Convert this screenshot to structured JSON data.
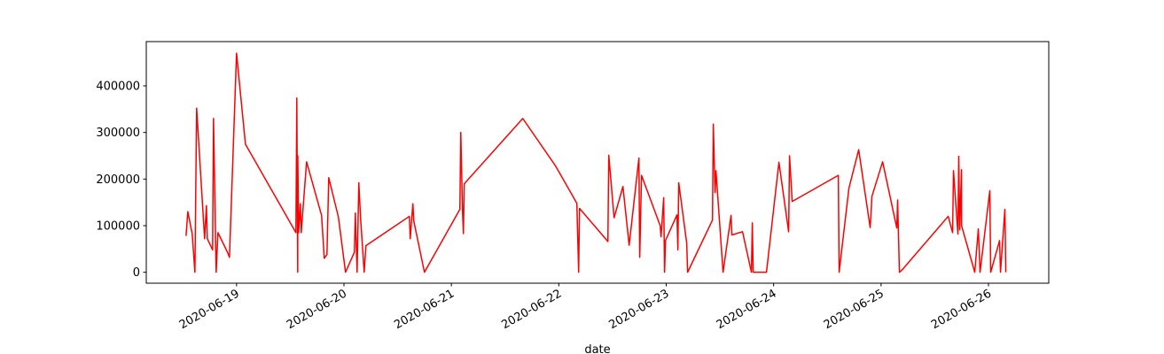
{
  "chart_data": {
    "type": "line",
    "x_label": "date",
    "x": [
      "2020-06-18T12:43",
      "2020-06-18T13:07",
      "2020-06-18T14:06",
      "2020-06-18T14:42",
      "2020-06-18T15:05",
      "2020-06-18T16:52",
      "2020-06-18T17:16",
      "2020-06-18T17:28",
      "2020-06-18T18:39",
      "2020-06-18T18:51",
      "2020-06-18T19:27",
      "2020-06-18T19:51",
      "2020-06-18T22:01",
      "2020-06-18T22:25",
      "2020-06-19T00:00",
      "2020-06-19T01:59",
      "2020-06-19T13:16",
      "2020-06-19T13:28",
      "2020-06-19T13:40",
      "2020-06-19T13:41",
      "2020-06-19T13:52",
      "2020-06-19T14:15",
      "2020-06-19T14:27",
      "2020-06-19T15:39",
      "2020-06-19T19:00",
      "2020-06-19T19:36",
      "2020-06-19T20:12",
      "2020-06-19T20:36",
      "2020-06-19T22:46",
      "2020-06-20T00:21",
      "2020-06-20T02:20",
      "2020-06-20T02:32",
      "2020-06-20T02:56",
      "2020-06-20T03:19",
      "2020-06-20T03:43",
      "2020-06-20T04:31",
      "2020-06-20T04:54",
      "2020-06-20T14:37",
      "2020-06-20T14:48",
      "2020-06-20T15:24",
      "2020-06-20T15:36",
      "2020-06-20T17:59",
      "2020-06-21T01:54",
      "2020-06-21T02:06",
      "2020-06-21T02:29",
      "2020-06-21T02:41",
      "2020-06-21T02:53",
      "2020-06-21T15:57",
      "2020-06-21T23:17",
      "2020-06-22T04:02",
      "2020-06-22T04:26",
      "2020-06-22T04:38",
      "2020-06-22T10:58",
      "2020-06-22T11:10",
      "2020-06-22T12:21",
      "2020-06-22T14:20",
      "2020-06-22T15:43",
      "2020-06-22T17:54",
      "2020-06-22T18:05",
      "2020-06-22T18:29",
      "2020-06-22T22:39",
      "2020-06-22T22:51",
      "2020-06-22T23:26",
      "2020-06-22T23:38",
      "2020-06-22T23:50",
      "2020-06-23T02:24",
      "2020-06-23T02:36",
      "2020-06-23T02:48",
      "2020-06-23T04:35",
      "2020-06-23T04:47",
      "2020-06-23T10:20",
      "2020-06-23T10:31",
      "2020-06-23T10:55",
      "2020-06-23T11:07",
      "2020-06-23T12:42",
      "2020-06-23T14:29",
      "2020-06-23T14:41",
      "2020-06-23T17:03",
      "2020-06-23T19:02",
      "2020-06-23T19:14",
      "2020-06-23T19:26",
      "2020-06-23T22:24",
      "2020-06-24T01:11",
      "2020-06-24T03:21",
      "2020-06-24T03:33",
      "2020-06-24T04:09",
      "2020-06-24T14:27",
      "2020-06-24T14:38",
      "2020-06-24T16:49",
      "2020-06-24T19:00",
      "2020-06-24T21:34",
      "2020-06-24T21:58",
      "2020-06-25T00:21",
      "2020-06-25T03:31",
      "2020-06-25T03:42",
      "2020-06-25T04:06",
      "2020-06-25T04:42",
      "2020-06-25T15:00",
      "2020-06-25T15:59",
      "2020-06-25T16:11",
      "2020-06-25T17:10",
      "2020-06-25T17:22",
      "2020-06-25T17:34",
      "2020-06-25T17:58",
      "2020-06-25T17:59",
      "2020-06-25T20:56",
      "2020-06-25T21:44",
      "2020-06-25T22:07",
      "2020-06-26T00:18",
      "2020-06-26T00:30",
      "2020-06-26T02:29",
      "2020-06-26T02:41",
      "2020-06-26T03:40",
      "2020-06-26T03:52"
    ],
    "series": [
      {
        "color": "#ff0000",
        "values": [
          78000,
          130000,
          82000,
          0,
          352000,
          72000,
          143000,
          72000,
          48000,
          330000,
          0,
          85000,
          42000,
          32000,
          470000,
          275000,
          85000,
          374000,
          0,
          250000,
          85000,
          147000,
          85000,
          237000,
          122000,
          30000,
          38000,
          203000,
          118000,
          0,
          43000,
          127000,
          0,
          192000,
          116000,
          0,
          57000,
          120000,
          72000,
          147000,
          110000,
          0,
          135000,
          300000,
          133000,
          83000,
          190000,
          330000,
          228000,
          148000,
          0,
          137000,
          66000,
          251000,
          117000,
          184000,
          58000,
          245000,
          32000,
          208000,
          100000,
          76000,
          160000,
          0,
          68000,
          123000,
          48000,
          192000,
          62000,
          0,
          112000,
          318000,
          171000,
          218000,
          0,
          122000,
          80000,
          87000,
          0,
          106000,
          0,
          0,
          236000,
          87000,
          250000,
          152000,
          208000,
          0,
          180000,
          263000,
          96000,
          163000,
          237000,
          95000,
          155000,
          0,
          5000,
          120000,
          85000,
          218000,
          82000,
          249000,
          91000,
          220000,
          100000,
          0,
          93000,
          0,
          175000,
          0,
          68000,
          0,
          135000,
          0
        ]
      }
    ],
    "xlim": [
      "2020-06-18T03:50",
      "2020-06-26T13:28"
    ],
    "xticks": [
      "2020-06-19",
      "2020-06-20",
      "2020-06-21",
      "2020-06-22",
      "2020-06-23",
      "2020-06-24",
      "2020-06-25",
      "2020-06-26"
    ],
    "ylim": [
      -23500,
      495000
    ],
    "yticks": [
      0,
      100000,
      200000,
      300000,
      400000
    ]
  }
}
